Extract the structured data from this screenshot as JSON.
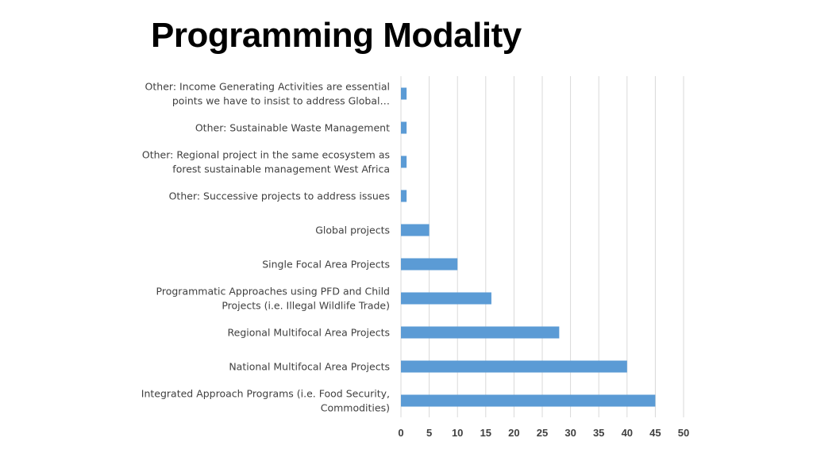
{
  "slide": {
    "title": "Programming Modality"
  },
  "colors": {
    "bar": "#5b9bd5",
    "grid": "#d9d9d9",
    "text": "#404040"
  },
  "chart_data": {
    "type": "bar",
    "orientation": "horizontal",
    "title": "",
    "xlabel": "",
    "ylabel": "",
    "xlim": [
      0,
      50
    ],
    "xticks": [
      0,
      5,
      10,
      15,
      20,
      25,
      30,
      35,
      40,
      45,
      50
    ],
    "grid": true,
    "categories": [
      [
        "Other: Income Generating Activities are essential",
        "points we have to insist to address Global…"
      ],
      [
        "Other: Sustainable Waste Management"
      ],
      [
        "Other: Regional project in the same ecosystem as",
        "forest sustainable management West Africa"
      ],
      [
        "Other: Successive projects to address issues"
      ],
      [
        "Global projects"
      ],
      [
        "Single Focal Area Projects"
      ],
      [
        "Programmatic Approaches using PFD and Child",
        "Projects (i.e. Illegal Wildlife Trade)"
      ],
      [
        "Regional Multifocal Area Projects"
      ],
      [
        "National Multifocal Area Projects"
      ],
      [
        "Integrated Approach Programs (i.e. Food Security,",
        "Commodities)"
      ]
    ],
    "values": [
      1,
      1,
      1,
      1,
      5,
      10,
      16,
      28,
      40,
      45
    ]
  }
}
